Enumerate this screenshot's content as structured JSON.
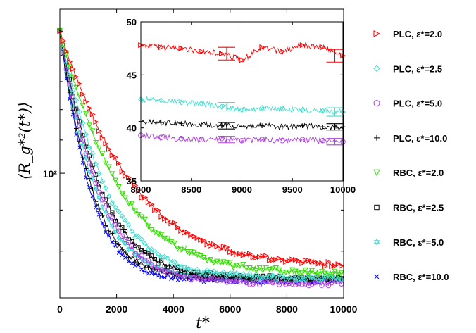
{
  "chart_data": [
    {
      "type": "line",
      "role": "main",
      "xlabel": "t*",
      "ylabel": "⟨R_g*²(t*)⟩",
      "xlim": [
        0,
        10000
      ],
      "yscale": "log",
      "ylim": [
        70,
        160
      ],
      "x_ticks": [
        "0",
        "2000",
        "4000",
        "6000",
        "8000",
        "10000"
      ],
      "x_tick_values": [
        0,
        2000,
        4000,
        6000,
        8000,
        10000
      ],
      "y_tick_labels": [
        "10²"
      ],
      "y_tick_values": [
        100
      ],
      "series": [
        {
          "name": "PLC, ε*=2.0",
          "color": "#ff0000",
          "marker": "triangle-right",
          "start": 150,
          "plateau": 76.5,
          "tau": 2000
        },
        {
          "name": "PLC, ε*=2.5",
          "color": "#40e0d0",
          "marker": "diamond",
          "start": 150,
          "plateau": 74.0,
          "tau": 1300
        },
        {
          "name": "PLC, ε*=5.0",
          "color": "#b040e0",
          "marker": "circle",
          "start": 150,
          "plateau": 73.0,
          "tau": 1100
        },
        {
          "name": "PLC, ε*=10.0",
          "color": "#000000",
          "marker": "plus",
          "start": 150,
          "plateau": 74.0,
          "tau": 900
        },
        {
          "name": "RBC, ε*=2.0",
          "color": "#33dd00",
          "marker": "triangle-down",
          "start": 150,
          "plateau": 75.0,
          "tau": 1650
        },
        {
          "name": "RBC, ε*=2.5",
          "color": "#000000",
          "marker": "square",
          "start": 150,
          "plateau": 74.0,
          "tau": 1150
        },
        {
          "name": "RBC, ε*=5.0",
          "color": "#40e0d0",
          "marker": "hexagram",
          "start": 150,
          "plateau": 74.0,
          "tau": 1000
        },
        {
          "name": "RBC, ε*=10.0",
          "color": "#0000ff",
          "marker": "x",
          "start": 150,
          "plateau": 73.5,
          "tau": 850
        }
      ]
    },
    {
      "type": "line",
      "role": "inset",
      "xlim": [
        8000,
        10000
      ],
      "ylim": [
        35,
        50
      ],
      "x_ticks": [
        "8000",
        "8500",
        "9000",
        "9500",
        "10000"
      ],
      "x_tick_values": [
        8000,
        8500,
        9000,
        9500,
        10000
      ],
      "y_ticks": [
        "35",
        "40",
        "45",
        "50"
      ],
      "y_tick_values": [
        35,
        40,
        45,
        50
      ],
      "series": [
        {
          "name": "PLC, ε*=2.0",
          "color": "#ff0000",
          "marker": "triangle-right",
          "x": [
            8000,
            8200,
            8400,
            8600,
            8800,
            9000,
            9200,
            9400,
            9600,
            9800,
            10000
          ],
          "y": [
            47.8,
            47.6,
            47.5,
            47.2,
            47.0,
            46.4,
            47.6,
            47.2,
            47.8,
            47.6,
            46.8
          ]
        },
        {
          "name": "PLC, ε*=2.5",
          "color": "#40e0d0",
          "marker": "diamond",
          "x": [
            8000,
            8200,
            8400,
            8600,
            8800,
            9000,
            9200,
            9400,
            9600,
            9800,
            10000
          ],
          "y": [
            42.7,
            42.6,
            42.4,
            42.3,
            42.0,
            41.7,
            41.9,
            41.8,
            41.7,
            41.6,
            41.5
          ]
        },
        {
          "name": "PLC, ε*=10.0",
          "color": "#000000",
          "marker": "plus",
          "x": [
            8000,
            8200,
            8400,
            8600,
            8800,
            9000,
            9200,
            9400,
            9600,
            9800,
            10000
          ],
          "y": [
            40.6,
            40.5,
            40.4,
            40.3,
            40.2,
            40.1,
            40.2,
            40.1,
            40.2,
            40.1,
            40.1
          ]
        },
        {
          "name": "PLC, ε*=5.0",
          "color": "#b040e0",
          "marker": "circle",
          "x": [
            8000,
            8200,
            8400,
            8600,
            8800,
            9000,
            9200,
            9400,
            9600,
            9800,
            10000
          ],
          "y": [
            39.3,
            39.1,
            39.0,
            38.9,
            39.0,
            38.8,
            38.9,
            38.8,
            38.9,
            38.8,
            38.7
          ]
        }
      ],
      "error_bars": [
        {
          "series": "PLC, ε*=2.0",
          "x": 8850,
          "y": 47.0,
          "err": 0.6
        },
        {
          "series": "PLC, ε*=2.0",
          "x": 9920,
          "y": 46.8,
          "err": 0.6
        },
        {
          "series": "PLC, ε*=2.5",
          "x": 8850,
          "y": 42.0,
          "err": 0.4
        },
        {
          "series": "PLC, ε*=2.5",
          "x": 9920,
          "y": 41.5,
          "err": 0.4
        },
        {
          "series": "PLC, ε*=10.0",
          "x": 8850,
          "y": 40.2,
          "err": 0.3
        },
        {
          "series": "PLC, ε*=10.0",
          "x": 9920,
          "y": 40.1,
          "err": 0.3
        },
        {
          "series": "PLC, ε*=5.0",
          "x": 8850,
          "y": 38.9,
          "err": 0.3
        },
        {
          "series": "PLC, ε*=5.0",
          "x": 9920,
          "y": 38.7,
          "err": 0.3
        }
      ]
    }
  ]
}
